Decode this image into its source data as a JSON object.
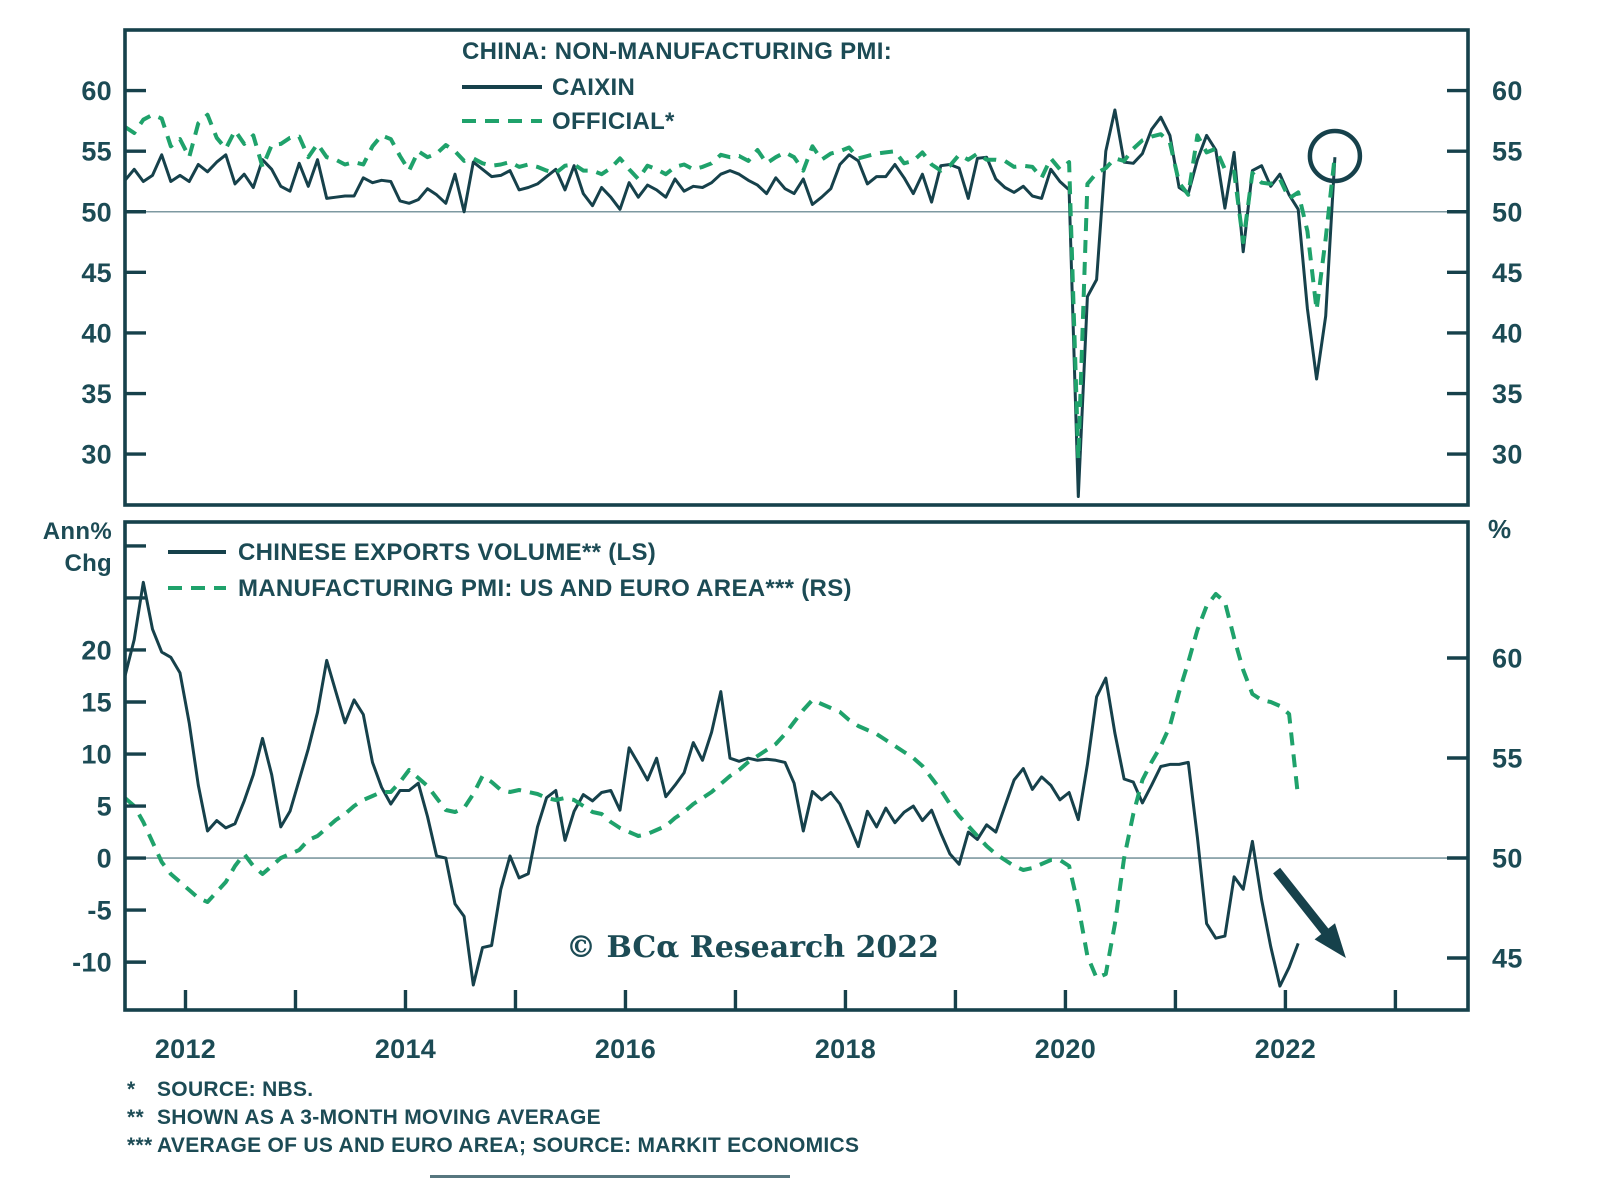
{
  "colors": {
    "dark_line": "#16414b",
    "green_line": "#1fa26b",
    "text": "#1c4b55",
    "gridline": "#7e99a1",
    "background": "#ffffff"
  },
  "watermark": "© BCα Research 2022",
  "footnotes": [
    {
      "marker": "*",
      "text": "SOURCE: NBS."
    },
    {
      "marker": "**",
      "text": "SHOWN AS A 3-MONTH MOVING AVERAGE"
    },
    {
      "marker": "***",
      "text": "AVERAGE OF US AND EURO AREA; SOURCE: MARKIT ECONOMICS"
    }
  ],
  "chart_data": [
    {
      "type": "line",
      "panel": "top",
      "title": "CHINA: NON-MANUFACTURING PMI:",
      "xlim": [
        2011.45,
        2023.66
      ],
      "ylim": [
        25.8,
        65.0
      ],
      "yticks": [
        60,
        55,
        50,
        45,
        40,
        35,
        30
      ],
      "refline": 50,
      "xticks_years": [],
      "xtick_labels": [],
      "x_start": 2011.45,
      "x_step": 0.0833333,
      "series": [
        {
          "name": "CAIXIN",
          "style": "solid",
          "axis": "left",
          "values": [
            52.6,
            53.5,
            52.5,
            53.0,
            54.7,
            52.5,
            53.0,
            52.5,
            53.9,
            53.3,
            54.1,
            54.7,
            52.3,
            53.1,
            52.0,
            54.3,
            53.5,
            52.1,
            51.7,
            54.0,
            52.1,
            54.3,
            51.1,
            51.2,
            51.3,
            51.3,
            52.8,
            52.4,
            52.6,
            52.5,
            50.9,
            50.7,
            51.0,
            51.9,
            51.4,
            50.7,
            53.1,
            50.0,
            54.1,
            53.5,
            52.9,
            53.0,
            53.4,
            51.8,
            52.0,
            52.3,
            52.9,
            53.5,
            51.8,
            53.8,
            51.5,
            50.5,
            52.0,
            51.2,
            50.2,
            52.4,
            51.2,
            52.2,
            51.8,
            51.2,
            52.7,
            51.7,
            52.1,
            52.0,
            52.4,
            53.1,
            53.4,
            53.1,
            52.6,
            52.2,
            51.5,
            52.8,
            51.9,
            51.5,
            52.7,
            50.6,
            51.2,
            51.9,
            53.9,
            54.7,
            54.2,
            52.3,
            52.9,
            52.9,
            53.9,
            52.8,
            51.5,
            53.1,
            50.8,
            53.8,
            53.9,
            53.6,
            51.1,
            54.4,
            54.5,
            52.7,
            52.0,
            51.6,
            52.1,
            51.3,
            51.1,
            53.5,
            52.5,
            51.8,
            26.5,
            43.0,
            44.4,
            55.0,
            58.4,
            54.1,
            54.0,
            54.8,
            56.8,
            57.8,
            56.3,
            52.0,
            51.5,
            54.3,
            56.3,
            55.1,
            50.3,
            54.9,
            46.7,
            53.4,
            53.8,
            52.1,
            53.1,
            51.4,
            50.2,
            42.0,
            36.2,
            41.4,
            54.5
          ]
        },
        {
          "name": "OFFICIAL*",
          "style": "dashed",
          "axis": "left",
          "values": [
            57.0,
            56.5,
            57.6,
            58.0,
            57.7,
            55.4,
            56.0,
            54.5,
            57.3,
            58.0,
            56.1,
            55.2,
            56.7,
            55.6,
            56.3,
            53.7,
            55.5,
            55.6,
            56.1,
            56.2,
            54.5,
            55.6,
            54.5,
            54.3,
            53.9,
            54.1,
            53.9,
            55.4,
            56.3,
            56.0,
            54.6,
            53.4,
            55.0,
            54.5,
            54.8,
            55.5,
            55.0,
            54.2,
            54.4,
            54.0,
            53.8,
            53.9,
            54.1,
            53.7,
            53.9,
            53.7,
            53.4,
            53.2,
            53.8,
            53.9,
            53.4,
            53.4,
            53.1,
            53.6,
            54.4,
            53.5,
            52.7,
            53.8,
            53.5,
            53.1,
            53.7,
            53.9,
            53.5,
            53.7,
            54.0,
            54.7,
            54.5,
            54.6,
            54.2,
            55.1,
            54.0,
            54.5,
            54.9,
            54.5,
            53.4,
            55.4,
            54.3,
            54.8,
            55.0,
            55.3,
            54.4,
            54.6,
            54.8,
            54.9,
            55.0,
            54.0,
            54.2,
            54.9,
            53.9,
            53.4,
            53.8,
            54.7,
            54.3,
            54.8,
            54.3,
            54.3,
            54.2,
            53.7,
            53.8,
            53.7,
            52.8,
            54.4,
            53.5,
            54.1,
            29.6,
            52.3,
            53.2,
            53.6,
            54.4,
            54.2,
            55.2,
            55.9,
            56.2,
            56.4,
            55.7,
            52.4,
            51.4,
            56.3,
            54.9,
            55.2,
            53.5,
            53.3,
            47.5,
            53.2,
            52.4,
            52.3,
            52.7,
            51.1,
            51.6,
            48.4,
            41.9,
            47.8,
            54.7
          ]
        }
      ],
      "annotations": [
        {
          "type": "circle",
          "x": 2022.45,
          "y": 54.6
        }
      ]
    },
    {
      "type": "line",
      "panel": "bottom",
      "left_axis_label_1": "Ann%",
      "left_axis_label_2": "Chg",
      "right_axis_label": "%",
      "xlim": [
        2011.45,
        2023.66
      ],
      "ylim_left": [
        -14.6,
        32.3
      ],
      "ylim_right": [
        42.4,
        66.8
      ],
      "yticks_left": [
        {
          "v": 30,
          "label": ""
        },
        {
          "v": 25,
          "label": ""
        },
        {
          "v": 20,
          "label": "20"
        },
        {
          "v": 15,
          "label": "15"
        },
        {
          "v": 10,
          "label": "10"
        },
        {
          "v": 5,
          "label": "5"
        },
        {
          "v": 0,
          "label": "0"
        },
        {
          "v": -5,
          "label": "-5"
        },
        {
          "v": -10,
          "label": "-10"
        }
      ],
      "yticks_right": [
        60,
        55,
        50,
        45
      ],
      "refline_left": 0,
      "xticks_years": [
        2012,
        2013,
        2014,
        2015,
        2016,
        2017,
        2018,
        2019,
        2020,
        2021,
        2022,
        2023
      ],
      "xtick_labels": [
        2012,
        2014,
        2016,
        2018,
        2020,
        2022
      ],
      "x_start": 2011.45,
      "x_step": 0.0833333,
      "series": [
        {
          "name": "CHINESE EXPORTS VOLUME** (LS)",
          "style": "solid",
          "axis": "left",
          "values": [
            17.5,
            21.0,
            26.5,
            22.0,
            19.8,
            19.3,
            17.8,
            13.0,
            7.0,
            2.6,
            3.6,
            2.9,
            3.3,
            5.5,
            8.0,
            11.5,
            8.0,
            3.0,
            4.5,
            7.5,
            10.5,
            14.0,
            19.0,
            16.0,
            13.0,
            15.2,
            13.8,
            9.2,
            6.8,
            5.2,
            6.5,
            6.5,
            7.2,
            4.0,
            0.2,
            0.0,
            -4.4,
            -5.6,
            -12.2,
            -8.6,
            -8.4,
            -3.0,
            0.2,
            -1.9,
            -1.5,
            3.0,
            5.8,
            6.5,
            1.7,
            4.5,
            6.1,
            5.5,
            6.3,
            6.5,
            4.6,
            10.6,
            9.1,
            7.5,
            9.6,
            5.9,
            7.0,
            8.2,
            11.1,
            9.4,
            12.1,
            16.0,
            9.6,
            9.3,
            9.6,
            9.4,
            9.5,
            9.4,
            9.2,
            7.2,
            2.6,
            6.4,
            5.6,
            6.3,
            5.2,
            3.2,
            1.1,
            4.5,
            3.0,
            4.8,
            3.4,
            4.4,
            5.0,
            3.6,
            4.6,
            2.4,
            0.4,
            -0.6,
            2.5,
            1.8,
            3.2,
            2.5,
            5.0,
            7.5,
            8.6,
            6.6,
            7.8,
            7.0,
            5.6,
            6.3,
            3.7,
            9.0,
            15.5,
            17.3,
            12.0,
            7.6,
            7.3,
            5.3,
            7.0,
            8.8,
            9.0,
            9.0,
            9.2,
            2.0,
            -6.3,
            -7.7,
            -7.5,
            -1.8,
            -3.0,
            1.6,
            -4.0,
            -8.5,
            -12.3,
            -10.5,
            -8.2
          ]
        },
        {
          "name": "MANUFACTURING PMI: US AND EURO AREA*** (RS)",
          "style": "dashed",
          "axis": "right",
          "values": [
            53.0,
            52.6,
            51.8,
            50.8,
            49.8,
            49.2,
            48.8,
            48.4,
            48.0,
            47.8,
            48.3,
            48.8,
            49.6,
            50.2,
            49.6,
            49.2,
            49.6,
            50.0,
            50.2,
            50.4,
            50.9,
            51.1,
            51.5,
            51.9,
            52.2,
            52.6,
            52.9,
            53.1,
            53.3,
            53.3,
            53.8,
            54.4,
            54.0,
            53.6,
            53.0,
            52.4,
            52.3,
            52.5,
            53.2,
            54.1,
            53.8,
            53.4,
            53.3,
            53.4,
            53.3,
            53.2,
            53.0,
            52.9,
            53.0,
            52.9,
            52.6,
            52.3,
            52.2,
            51.8,
            51.5,
            51.3,
            51.1,
            51.2,
            51.4,
            51.6,
            52.0,
            52.3,
            52.7,
            53.0,
            53.3,
            53.7,
            54.1,
            54.4,
            54.8,
            55.1,
            55.4,
            55.7,
            56.2,
            56.8,
            57.4,
            57.9,
            57.7,
            57.5,
            57.3,
            56.9,
            56.6,
            56.4,
            56.2,
            55.9,
            55.6,
            55.3,
            55.0,
            54.6,
            54.0,
            53.4,
            52.7,
            52.1,
            51.6,
            51.1,
            50.6,
            50.2,
            49.9,
            49.6,
            49.4,
            49.5,
            49.7,
            49.9,
            49.9,
            49.6,
            47.6,
            45.1,
            44.0,
            44.2,
            46.7,
            50.0,
            52.2,
            53.9,
            54.8,
            55.6,
            56.6,
            58.3,
            59.8,
            61.4,
            62.6,
            63.2,
            62.8,
            61.0,
            59.4,
            58.2,
            57.9,
            57.8,
            57.6,
            57.2,
            53.0
          ]
        }
      ],
      "annotations": [
        {
          "type": "arrow",
          "x1": 2021.92,
          "y1": -1.2,
          "x2": 2022.55,
          "y2": -9.6
        }
      ]
    }
  ]
}
